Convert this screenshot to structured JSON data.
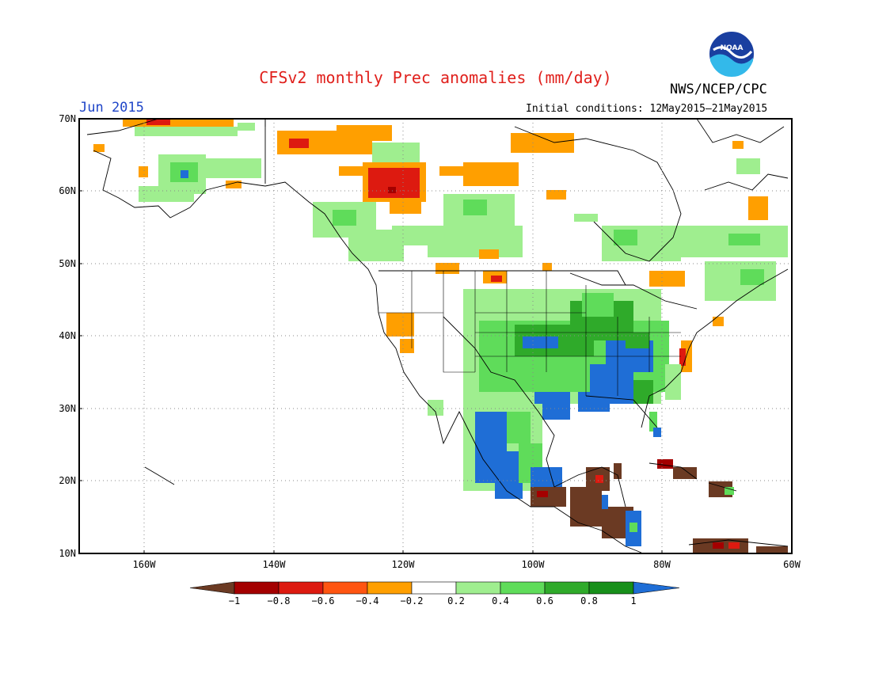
{
  "header": {
    "title": "CFSv2 monthly Prec anomalies (mm/day)",
    "month": "Jun 2015",
    "initial_conditions": "Initial conditions: 12May2015–21May2015",
    "agency": "NWS/NCEP/CPC",
    "logo_text": "NOAA"
  },
  "axes": {
    "lat_labels": [
      "70N",
      "60N",
      "50N",
      "40N",
      "30N",
      "20N",
      "10N"
    ],
    "lon_labels": [
      "160W",
      "140W",
      "120W",
      "100W",
      "80W",
      "60W"
    ]
  },
  "legend": {
    "labels": [
      "−1",
      "−0.8",
      "−0.6",
      "−0.4",
      "−0.2",
      "0.2",
      "0.4",
      "0.6",
      "0.8",
      "1"
    ],
    "colors": [
      "#6b3a23",
      "#a40000",
      "#dd1a10",
      "#ff5511",
      "#ff9f00",
      "#ffffff",
      "#9fee8f",
      "#5fdc5a",
      "#2faa2a",
      "#178f1a",
      "#1f6ed6"
    ]
  },
  "map_regions": [
    {
      "name": "alaska-north-slope-orange",
      "color": "#ff9f00"
    },
    {
      "name": "yukon-red",
      "color": "#dd1a10"
    },
    {
      "name": "great-plains-green",
      "color": "#5fdc5a"
    },
    {
      "name": "southeast-blue",
      "color": "#1f6ed6"
    },
    {
      "name": "mexico-blue",
      "color": "#1f6ed6"
    },
    {
      "name": "central-america-brown",
      "color": "#6b3a23"
    }
  ]
}
